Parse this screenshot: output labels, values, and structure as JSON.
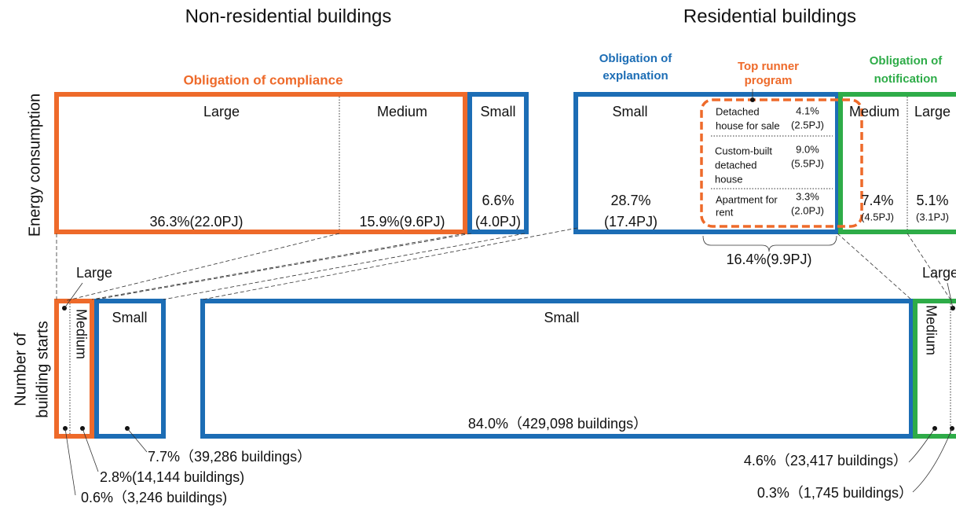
{
  "titles": [
    "Non-residential buildings",
    "Residential buildings"
  ],
  "axis_labels": {
    "energy": "Energy consumption",
    "starts": [
      "Number of",
      "building starts"
    ]
  },
  "groups": {
    "compliance": "Obligation of compliance",
    "explanation": [
      "Obligation of",
      "explanation"
    ],
    "top_runner": [
      "Top runner",
      "program"
    ],
    "notification": [
      "Obligation of",
      "notification"
    ]
  },
  "energy": {
    "non_residential": [
      {
        "label": "Large",
        "value": [
          "36.3%(22.0PJ)"
        ]
      },
      {
        "label": "Medium",
        "value": [
          "15.9%(9.6PJ)"
        ]
      },
      {
        "label": "Small",
        "value": [
          "6.6%",
          "(4.0PJ)"
        ]
      }
    ],
    "residential": [
      {
        "label": "Small",
        "value": [
          "28.7%",
          "(17.4PJ)"
        ]
      },
      {
        "label": "Medium",
        "value": [
          "7.4%",
          "(4.5PJ)"
        ]
      },
      {
        "label": "Large",
        "value": [
          "5.1%",
          "(3.1PJ)"
        ]
      }
    ],
    "top_runner": [
      {
        "label": [
          "Detached",
          "house for sale"
        ],
        "value": [
          "4.1%",
          "(2.5PJ)"
        ]
      },
      {
        "label": [
          "Custom-built",
          "detached",
          "house"
        ],
        "value": [
          "9.0%",
          "(5.5PJ)"
        ]
      },
      {
        "label": [
          "Apartment for",
          "rent"
        ],
        "value": [
          "3.3%",
          "(2.0PJ)"
        ]
      }
    ],
    "top_runner_total": "16.4%(9.9PJ)"
  },
  "starts": {
    "non_residential": {
      "large": "Large",
      "medium": "Medium",
      "small": "Small"
    },
    "residential": {
      "small": "Small",
      "medium": "Medium",
      "large": "Large"
    },
    "callouts": [
      "84.0%（429,098 buildings）",
      "7.7%（39,286 buildings）",
      "2.8%(14,144 buildings)",
      "0.6%（3,246 buildings)",
      "4.6%（23,417 buildings）",
      "0.3%（1,745 buildings）"
    ]
  }
}
